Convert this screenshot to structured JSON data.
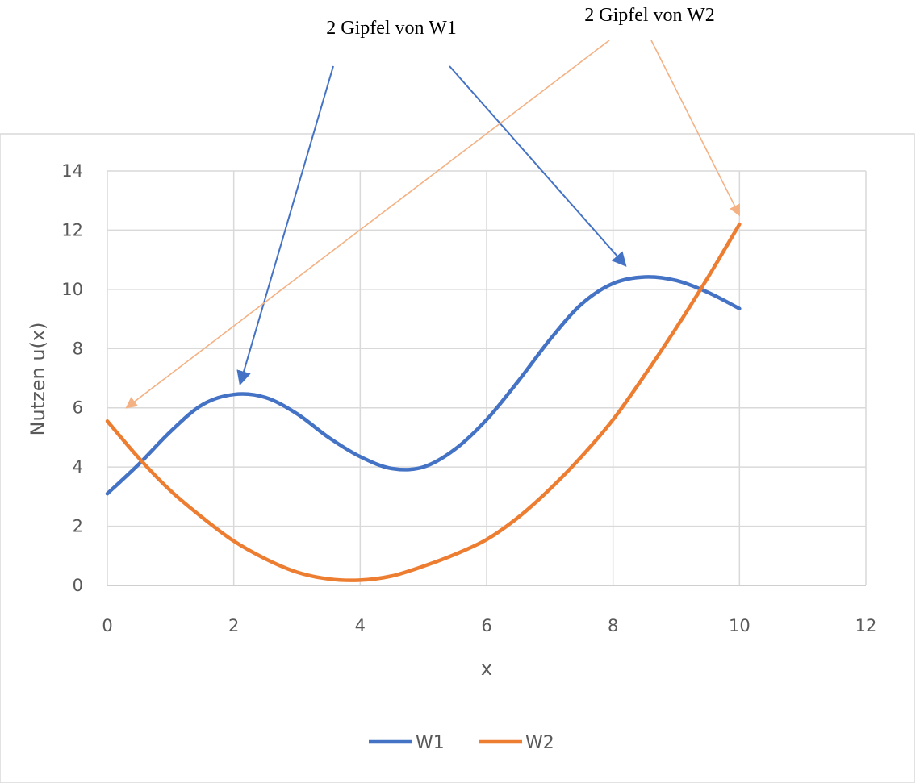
{
  "chart_data": {
    "type": "line",
    "title": "",
    "xlabel": "x",
    "ylabel": "Nutzen u(x)",
    "xlim": [
      0,
      12
    ],
    "ylim": [
      0,
      14
    ],
    "xticks": [
      0,
      2,
      4,
      6,
      8,
      10,
      12
    ],
    "yticks": [
      0,
      2,
      4,
      6,
      8,
      10,
      12,
      14
    ],
    "grid": true,
    "legend_position": "bottom",
    "series": [
      {
        "name": "W1",
        "color": "#4472C4",
        "x": [
          0,
          0.5,
          1,
          1.5,
          2,
          2.5,
          3,
          3.5,
          4,
          4.5,
          5,
          5.5,
          6,
          6.5,
          7,
          7.5,
          8,
          8.5,
          9,
          9.5,
          10
        ],
        "y": [
          3.1,
          4.1,
          5.2,
          6.1,
          6.45,
          6.35,
          5.8,
          5.0,
          4.35,
          3.95,
          4.0,
          4.6,
          5.6,
          6.9,
          8.3,
          9.5,
          10.2,
          10.42,
          10.3,
          9.9,
          9.35
        ]
      },
      {
        "name": "W2",
        "color": "#ED7D31",
        "x": [
          0,
          0.5,
          1,
          1.5,
          2,
          2.5,
          3,
          3.5,
          4,
          4.5,
          5,
          5.5,
          6,
          6.5,
          7,
          7.5,
          8,
          8.5,
          9,
          9.5,
          10
        ],
        "y": [
          5.55,
          4.3,
          3.2,
          2.3,
          1.5,
          0.9,
          0.45,
          0.22,
          0.18,
          0.32,
          0.65,
          1.05,
          1.55,
          2.3,
          3.25,
          4.35,
          5.6,
          7.1,
          8.7,
          10.4,
          12.2
        ]
      }
    ],
    "annotations": [
      {
        "text": "2 Gipfel von W1",
        "color": "#4472C4",
        "targets": [
          {
            "x": 2.1,
            "y": 6.8
          },
          {
            "x": 8.2,
            "y": 10.8
          }
        ]
      },
      {
        "text": "2 Gipfel von W2",
        "color": "#F4B183",
        "targets": [
          {
            "x": 0.3,
            "y": 6.0
          },
          {
            "x": 10.0,
            "y": 12.5
          }
        ]
      }
    ]
  }
}
